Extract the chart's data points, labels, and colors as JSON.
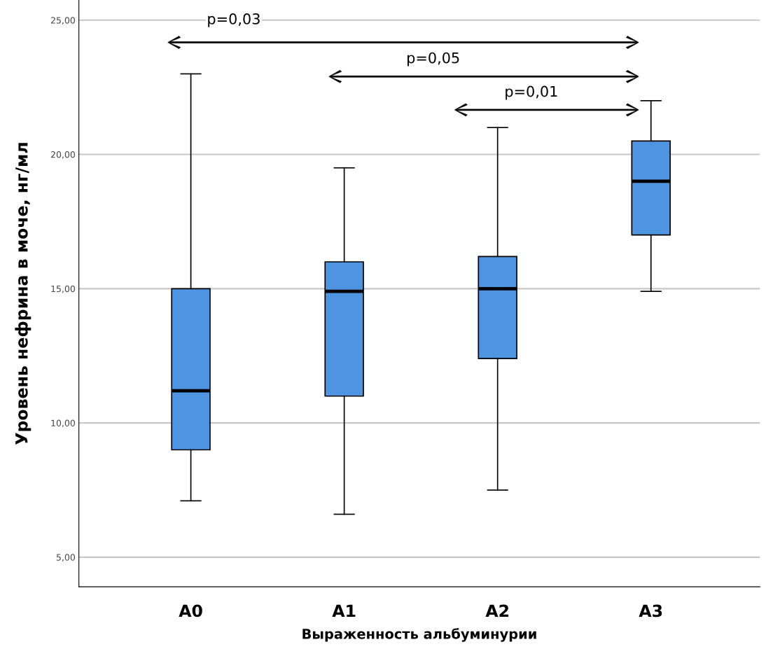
{
  "chart_data": {
    "type": "box",
    "xlabel": "Выраженность альбуминурии",
    "ylabel": "Уровень нефрина в моче, нг/мл",
    "categories": [
      "A0",
      "A1",
      "A2",
      "A3"
    ],
    "boxes": [
      {
        "low": 7.1,
        "q1": 9.0,
        "median": 11.2,
        "q3": 15.0,
        "high": 23.0
      },
      {
        "low": 6.6,
        "q1": 11.0,
        "median": 14.9,
        "q3": 16.0,
        "high": 19.5
      },
      {
        "low": 7.5,
        "q1": 12.4,
        "median": 15.0,
        "q3": 16.2,
        "high": 21.0
      },
      {
        "low": 14.9,
        "q1": 17.0,
        "median": 19.0,
        "q3": 20.5,
        "high": 22.0
      }
    ],
    "color": "#4f94e0",
    "ylim": [
      3.9,
      25.75
    ],
    "yticks": [
      {
        "value": 5,
        "label": "5,00"
      },
      {
        "value": 10,
        "label": "10,00"
      },
      {
        "value": 15,
        "label": "15,00"
      },
      {
        "value": 20,
        "label": "20,00"
      },
      {
        "value": 25,
        "label": "25,00"
      }
    ],
    "grid": "y",
    "annotations": [
      "p=0,03",
      "p=0,05",
      "p=0,01"
    ]
  }
}
